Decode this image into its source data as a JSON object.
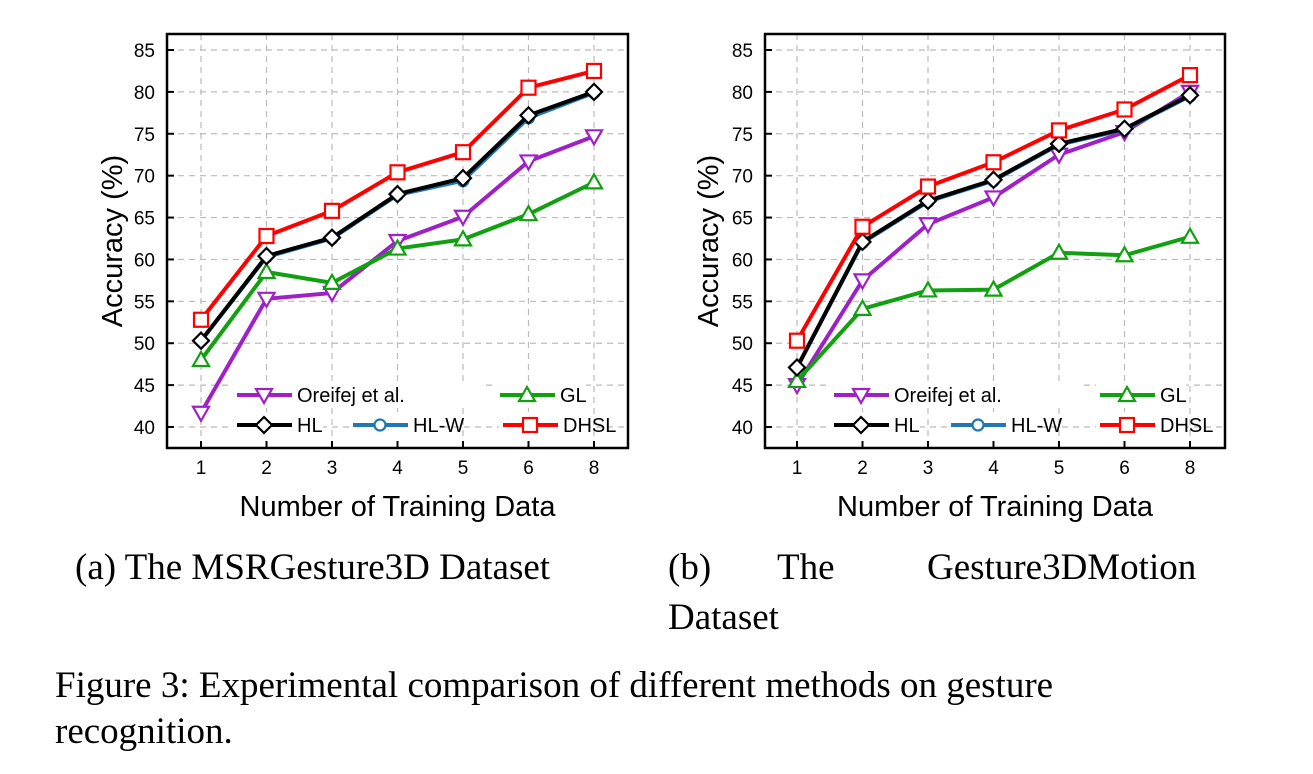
{
  "chart_data": [
    {
      "type": "line",
      "xlabel": "Number of Training Data",
      "ylabel": "Accuracy (%)",
      "categories": [
        "1",
        "2",
        "3",
        "4",
        "5",
        "6",
        "8"
      ],
      "ylim": [
        38,
        87
      ],
      "yticks": [
        40,
        45,
        50,
        55,
        60,
        65,
        70,
        75,
        80,
        85
      ],
      "grid": true,
      "legend": "bottom",
      "series": [
        {
          "name": "Oreifej et al.",
          "color": "#a020c8",
          "marker": "triangle-down",
          "values": [
            41.7,
            55.3,
            56.0,
            62.2,
            65.1,
            71.7,
            74.7
          ]
        },
        {
          "name": "GL",
          "color": "#10a010",
          "marker": "triangle-up",
          "values": [
            48.0,
            58.5,
            57.2,
            61.3,
            62.4,
            65.4,
            69.2
          ]
        },
        {
          "name": "HL-W",
          "color": "#1f77b4",
          "marker": "circle",
          "values": [
            50.3,
            60.3,
            62.5,
            67.7,
            69.4,
            76.9,
            79.9
          ]
        },
        {
          "name": "HL",
          "color": "#000000",
          "marker": "diamond",
          "values": [
            50.3,
            60.4,
            62.6,
            67.8,
            69.7,
            77.2,
            80.0
          ]
        },
        {
          "name": "DHSL",
          "color": "#ff0000",
          "marker": "square",
          "values": [
            52.8,
            62.8,
            65.8,
            70.4,
            72.8,
            80.5,
            82.5
          ]
        }
      ]
    },
    {
      "type": "line",
      "xlabel": "Number of Training Data",
      "ylabel": "Accuracy (%)",
      "categories": [
        "1",
        "2",
        "3",
        "4",
        "5",
        "6",
        "8"
      ],
      "ylim": [
        38,
        87
      ],
      "yticks": [
        40,
        45,
        50,
        55,
        60,
        65,
        70,
        75,
        80,
        85
      ],
      "grid": true,
      "legend": "bottom",
      "series": [
        {
          "name": "Oreifej et al.",
          "color": "#a020c8",
          "marker": "triangle-down",
          "values": [
            45.0,
            57.5,
            64.2,
            67.4,
            72.5,
            75.2,
            80.0
          ]
        },
        {
          "name": "GL",
          "color": "#10a010",
          "marker": "triangle-up",
          "values": [
            45.5,
            54.1,
            56.3,
            56.4,
            60.8,
            60.5,
            62.7
          ]
        },
        {
          "name": "HL-W",
          "color": "#1f77b4",
          "marker": "circle",
          "values": [
            47.1,
            62.0,
            66.9,
            69.4,
            73.7,
            75.5,
            79.5
          ]
        },
        {
          "name": "HL",
          "color": "#000000",
          "marker": "diamond",
          "values": [
            47.1,
            62.1,
            67.0,
            69.5,
            73.8,
            75.6,
            79.6
          ]
        },
        {
          "name": "DHSL",
          "color": "#ff0000",
          "marker": "square",
          "values": [
            50.3,
            63.9,
            68.7,
            71.6,
            75.4,
            77.9,
            82.0
          ]
        }
      ]
    }
  ],
  "captions": {
    "a": "(a) The MSRGesture3D Dataset",
    "b_line1": [
      "(b)",
      "The",
      "Gesture3DMotion"
    ],
    "b_line2": "Dataset",
    "figure_line1": "Figure 3: Experimental comparison of different methods on gesture",
    "figure_line2": "recognition."
  }
}
